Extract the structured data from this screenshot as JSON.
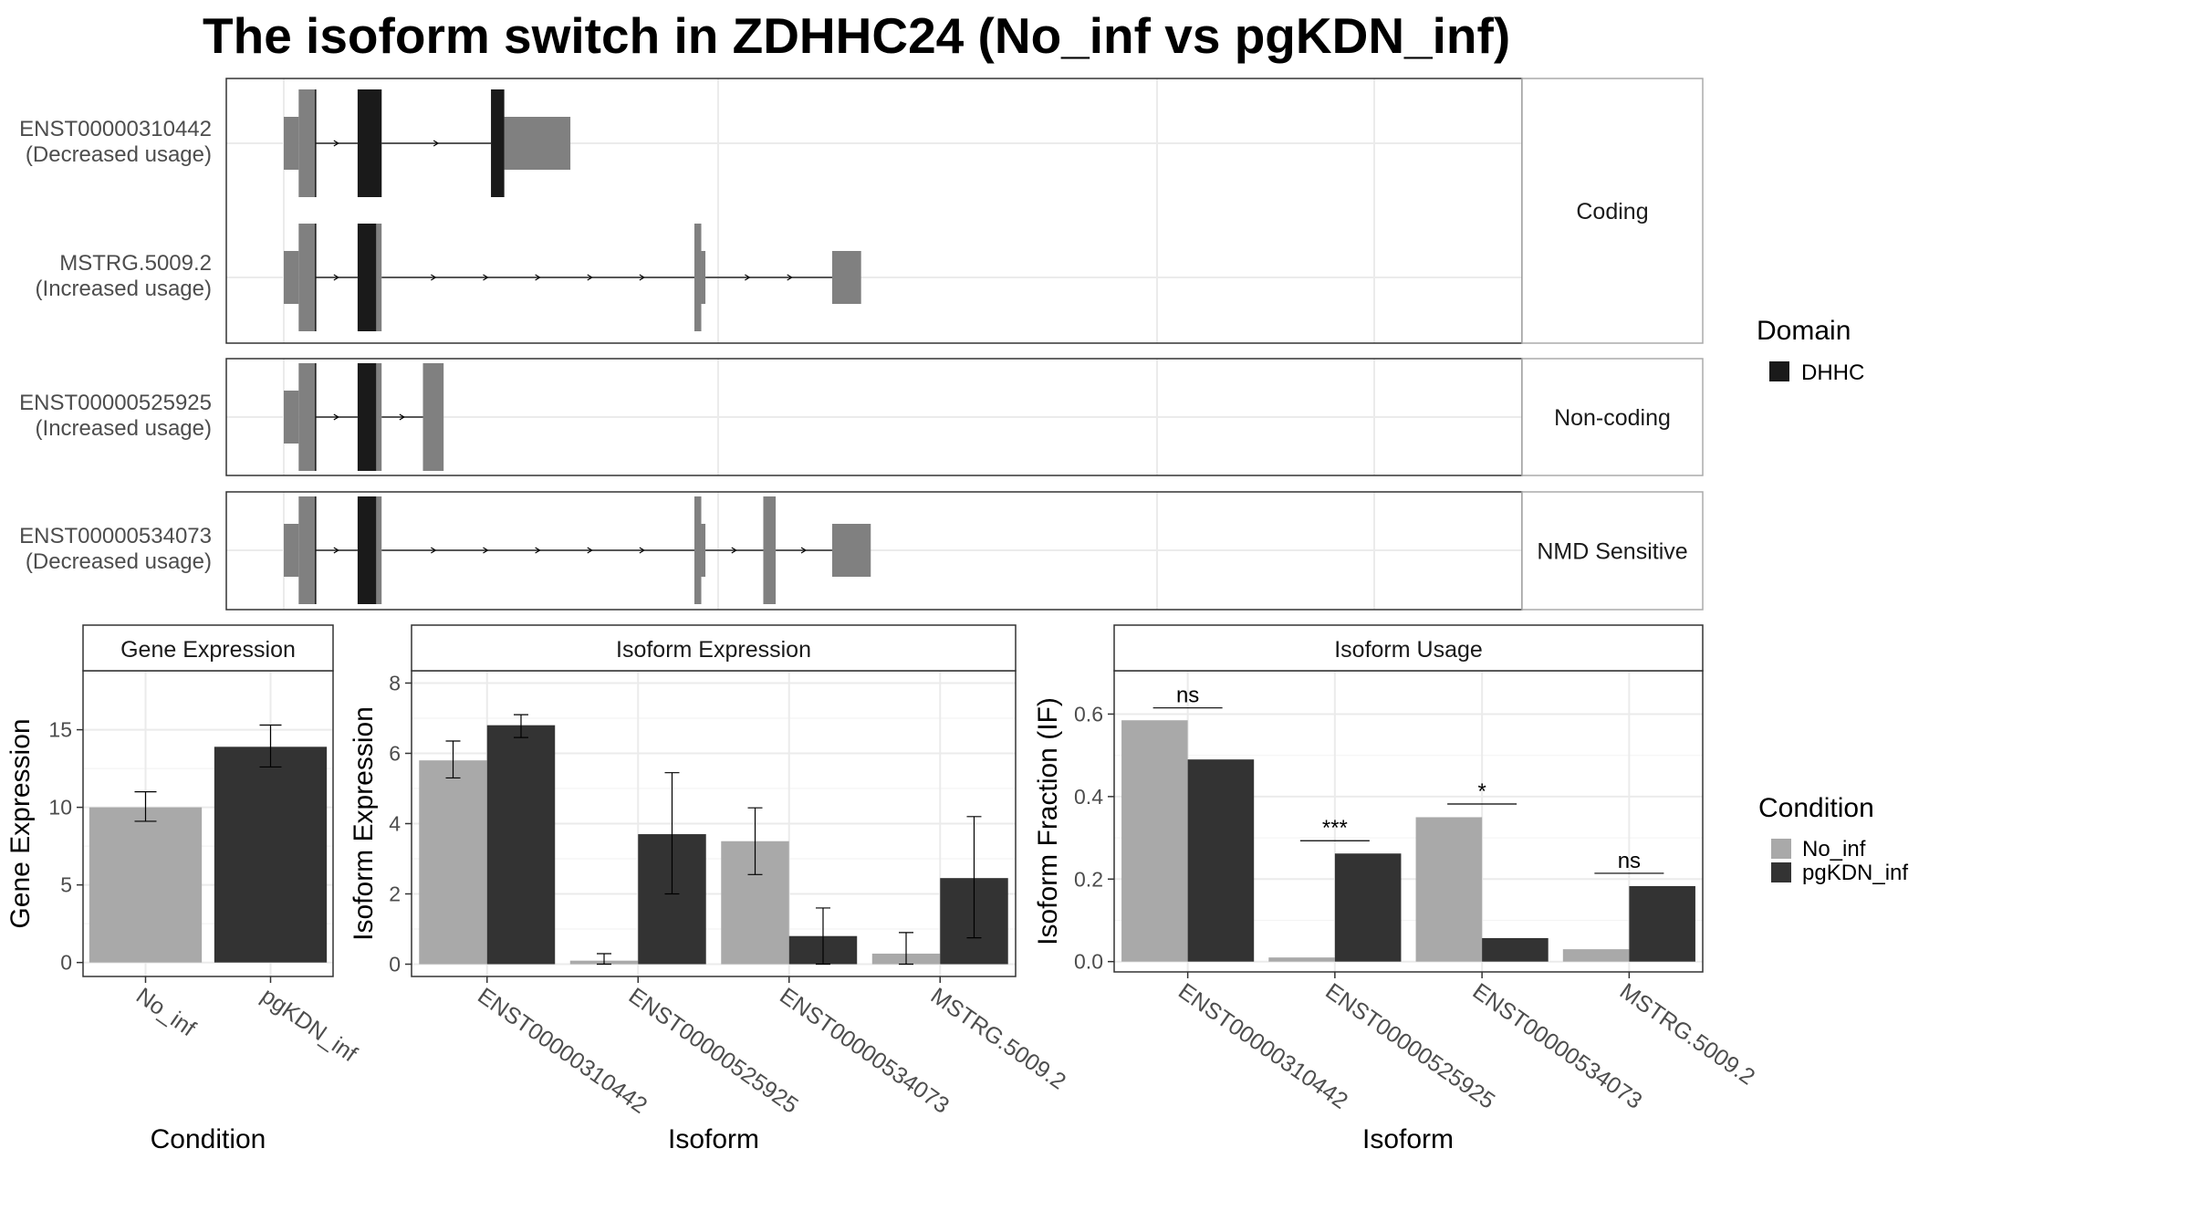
{
  "title": "The isoform switch in ZDHHC24 (No_inf vs pgKDN_inf)",
  "colors": {
    "no_inf": "#a9a9a9",
    "pgkdn_inf": "#333333",
    "exon": "#808080",
    "domain": "#1a1a1a",
    "grid": "#ebebeb",
    "panel_border": "#333333",
    "strip_bg": "#ffffff"
  },
  "transcript_panel": {
    "groups": [
      {
        "label": "Coding",
        "transcripts": [
          {
            "id": "ENST00000310442",
            "usage": "(Decreased usage)",
            "exons": [
              [
                0.0,
                0.054,
                "utr"
              ],
              [
                0.054,
                0.115,
                "cds"
              ],
              [
                0.268,
                0.355,
                "cds"
              ],
              [
                0.752,
                0.8,
                "cds"
              ],
              [
                0.8,
                1.04,
                "utr"
              ]
            ],
            "domains": [
              [
                0.113,
                0.118
              ],
              [
                0.268,
                0.355
              ],
              [
                0.752,
                0.8
              ]
            ]
          },
          {
            "id": "MSTRG.5009.2",
            "usage": "(Increased usage)",
            "exons": [
              [
                0.0,
                0.054,
                "utr"
              ],
              [
                0.054,
                0.115,
                "cds"
              ],
              [
                0.268,
                0.355,
                "cds"
              ],
              [
                1.49,
                1.515,
                "cds"
              ],
              [
                1.515,
                1.53,
                "utr"
              ],
              [
                1.99,
                2.095,
                "utr"
              ]
            ],
            "domains": [
              [
                0.113,
                0.118
              ],
              [
                0.268,
                0.335
              ]
            ]
          }
        ]
      },
      {
        "label": "Non-coding",
        "transcripts": [
          {
            "id": "ENST00000525925",
            "usage": "(Increased usage)",
            "exons": [
              [
                0.0,
                0.054,
                "utr"
              ],
              [
                0.054,
                0.115,
                "cds"
              ],
              [
                0.268,
                0.355,
                "cds"
              ],
              [
                0.505,
                0.58,
                "cds"
              ]
            ],
            "domains": [
              [
                0.113,
                0.118
              ],
              [
                0.268,
                0.335
              ]
            ]
          }
        ]
      },
      {
        "label": "NMD Sensitive",
        "transcripts": [
          {
            "id": "ENST00000534073",
            "usage": "(Decreased usage)",
            "exons": [
              [
                0.0,
                0.054,
                "utr"
              ],
              [
                0.054,
                0.115,
                "cds"
              ],
              [
                0.268,
                0.355,
                "cds"
              ],
              [
                1.49,
                1.515,
                "cds"
              ],
              [
                1.515,
                1.53,
                "utr"
              ],
              [
                1.74,
                1.785,
                "cds"
              ],
              [
                1.99,
                2.13,
                "utr"
              ]
            ],
            "domains": [
              [
                0.113,
                0.118
              ],
              [
                0.268,
                0.335
              ]
            ]
          }
        ]
      }
    ],
    "legend": {
      "title": "Domain",
      "items": [
        "DHHC"
      ]
    }
  },
  "chart_data": [
    {
      "type": "bar",
      "title": "Gene Expression",
      "xlabel": "Condition",
      "ylabel": "Gene Expression",
      "categories": [
        "No_inf",
        "pgKDN_inf"
      ],
      "values": [
        10.0,
        13.9
      ],
      "error_low": [
        9.1,
        12.6
      ],
      "error_high": [
        11.0,
        15.3
      ],
      "ylim": [
        -0.9,
        18.8
      ],
      "yticks": [
        0,
        5,
        10,
        15
      ]
    },
    {
      "type": "bar",
      "title": "Isoform Expression",
      "xlabel": "Isoform",
      "ylabel": "Isoform Expression",
      "categories": [
        "ENST00000310442",
        "ENST00000525925",
        "ENST00000534073",
        "MSTRG.5009.2"
      ],
      "series": [
        {
          "name": "No_inf",
          "values": [
            5.8,
            0.1,
            3.5,
            0.3
          ],
          "error_low": [
            5.3,
            0.0,
            2.55,
            0.0
          ],
          "error_high": [
            6.35,
            0.3,
            4.45,
            0.9
          ]
        },
        {
          "name": "pgKDN_inf",
          "values": [
            6.8,
            3.7,
            0.8,
            2.45
          ],
          "error_low": [
            6.45,
            2.0,
            0.0,
            0.75
          ],
          "error_high": [
            7.1,
            5.45,
            1.6,
            4.2
          ]
        }
      ],
      "ylim": [
        -0.35,
        8.35
      ],
      "yticks": [
        0,
        2,
        4,
        6,
        8
      ]
    },
    {
      "type": "bar",
      "title": "Isoform Usage",
      "xlabel": "Isoform",
      "ylabel": "Isoform Fraction (IF)",
      "categories": [
        "ENST00000310442",
        "ENST00000525925",
        "ENST00000534073",
        "MSTRG.5009.2"
      ],
      "series": [
        {
          "name": "No_inf",
          "values": [
            0.585,
            0.01,
            0.35,
            0.03
          ]
        },
        {
          "name": "pgKDN_inf",
          "values": [
            0.49,
            0.262,
            0.057,
            0.183
          ]
        }
      ],
      "significance": [
        "ns",
        "***",
        "*",
        "ns"
      ],
      "sig_y": [
        0.615,
        0.293,
        0.382,
        0.214
      ],
      "ylim": [
        -0.025,
        0.705
      ],
      "yticks": [
        0.0,
        0.2,
        0.4,
        0.6
      ],
      "ytick_labels": [
        "0.0",
        "0.2",
        "0.4",
        "0.6"
      ]
    }
  ],
  "condition_legend": {
    "title": "Condition",
    "items": [
      "No_inf",
      "pgKDN_inf"
    ]
  }
}
